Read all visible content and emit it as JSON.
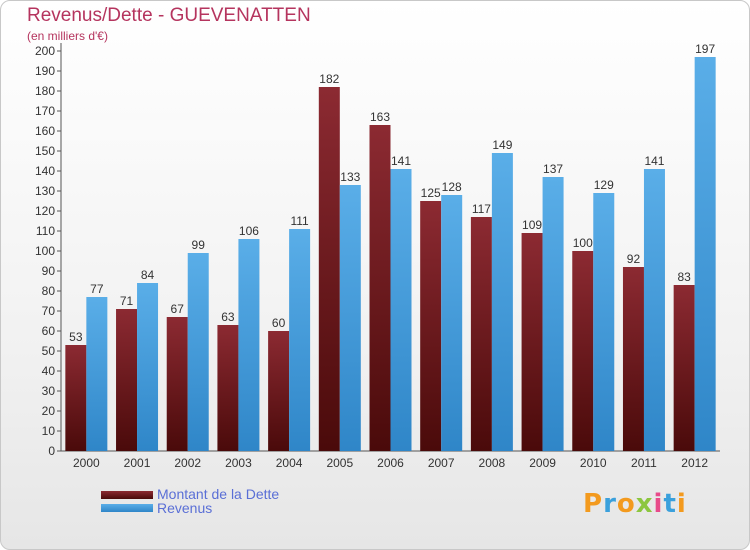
{
  "title": "Revenus/Dette - GUEVENATTEN",
  "subtitle": "(en milliers d'€)",
  "logo_text": "Proxiti",
  "colors": {
    "dette_top": "#8c2a32",
    "dette_bottom": "#4a0a0a",
    "revenus_top": "#5aaee8",
    "revenus_bottom": "#2f86c8",
    "title": "#b5345e",
    "legend_text": "#5a6fd6"
  },
  "chart_data": {
    "type": "bar",
    "title": "Revenus/Dette - GUEVENATTEN",
    "subtitle": "(en milliers d'€)",
    "xlabel": "",
    "ylabel": "",
    "ylim": [
      0,
      200
    ],
    "ytick_step": 10,
    "grid": false,
    "legend_position": "bottom-left",
    "categories": [
      "2000",
      "2001",
      "2002",
      "2003",
      "2004",
      "2005",
      "2006",
      "2007",
      "2008",
      "2009",
      "2010",
      "2011",
      "2012"
    ],
    "series": [
      {
        "name": "Montant de la Dette",
        "values": [
          53,
          71,
          67,
          63,
          60,
          182,
          163,
          125,
          117,
          109,
          100,
          92,
          83
        ]
      },
      {
        "name": "Revenus",
        "values": [
          77,
          84,
          99,
          106,
          111,
          133,
          141,
          128,
          149,
          137,
          129,
          141,
          197
        ]
      }
    ]
  }
}
